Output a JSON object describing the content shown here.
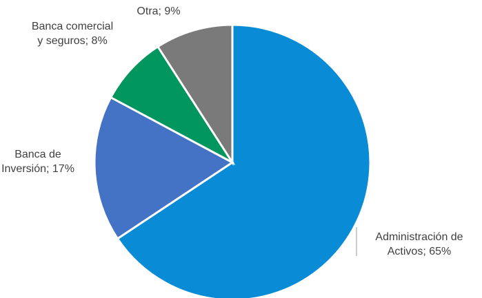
{
  "chart_data": {
    "type": "pie",
    "values": [
      65,
      17,
      8,
      9
    ],
    "value_labels": [
      "Administración de Activos; 65%",
      "Banca de Inversión; 17%",
      "Banca comercial y seguros; 8%",
      "Otra; 9%"
    ],
    "colors": [
      "#0a8bd6",
      "#4472c4",
      "#00965e",
      "#7a7a7a"
    ]
  }
}
